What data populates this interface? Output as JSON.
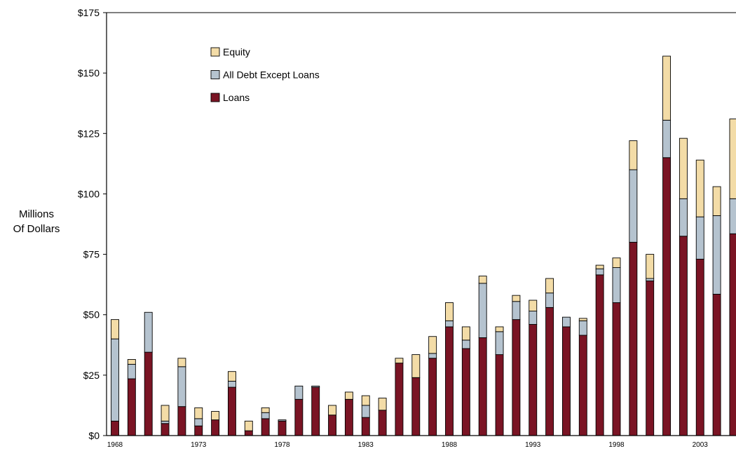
{
  "chart_data": {
    "type": "bar",
    "stacked": true,
    "title": "",
    "xlabel": "",
    "ylabel_lines": [
      "Millions",
      "Of Dollars"
    ],
    "ylim": [
      0,
      175
    ],
    "yticks": [
      0,
      25,
      50,
      75,
      100,
      125,
      150,
      175
    ],
    "ytick_labels": [
      "$0",
      "$25",
      "$50",
      "$75",
      "$100",
      "$125",
      "$150",
      "$175"
    ],
    "xtick_labels": [
      {
        "year": 1968,
        "label": "1968"
      },
      {
        "year": 1973,
        "label": "1973"
      },
      {
        "year": 1978,
        "label": "1978"
      },
      {
        "year": 1983,
        "label": "1983"
      },
      {
        "year": 1988,
        "label": "1988"
      },
      {
        "year": 1993,
        "label": "1993"
      },
      {
        "year": 1998,
        "label": "1998"
      },
      {
        "year": 2003,
        "label": "2003"
      }
    ],
    "grid": false,
    "legend_position": "top-left",
    "categories": [
      1968,
      1969,
      1970,
      1971,
      1972,
      1973,
      1974,
      1975,
      1976,
      1977,
      1978,
      1979,
      1980,
      1981,
      1982,
      1983,
      1984,
      1985,
      1986,
      1987,
      1988,
      1989,
      1990,
      1991,
      1992,
      1993,
      1994,
      1995,
      1996,
      1997,
      1998,
      1999,
      2000,
      2001,
      2002,
      2003,
      2004,
      2005
    ],
    "series": [
      {
        "name": "Loans",
        "color": "#7a1424",
        "values": [
          6,
          23.5,
          34.5,
          5,
          12,
          4,
          6.5,
          20,
          2,
          7,
          6,
          15,
          20,
          8.5,
          15,
          7.5,
          10.5,
          30,
          24,
          32,
          45,
          36,
          40.5,
          33.5,
          48,
          46,
          53,
          45,
          41.5,
          66.5,
          55,
          80,
          64,
          115,
          82.5,
          73,
          58.5,
          83.5
        ]
      },
      {
        "name": "All Debt Except Loans",
        "color": "#b5c3cf",
        "values": [
          34,
          6,
          16.5,
          1,
          16.5,
          3,
          0,
          2.5,
          0,
          2.5,
          0.5,
          5.5,
          0.5,
          0,
          0,
          5,
          0,
          0,
          0,
          2,
          2.5,
          3.5,
          22.5,
          9.5,
          7.5,
          5.5,
          6,
          4,
          6,
          2.5,
          14.5,
          30,
          1,
          15.5,
          15.5,
          17.5,
          32.5,
          14.5
        ]
      },
      {
        "name": "Equity",
        "color": "#f3dca7",
        "values": [
          8,
          2,
          0,
          6.5,
          3.5,
          4.5,
          3.5,
          4,
          4,
          2,
          0,
          0,
          0,
          4,
          3,
          4,
          5,
          2,
          9.5,
          7,
          7.5,
          5.5,
          3,
          2,
          2.5,
          4.5,
          6,
          0,
          1,
          1.5,
          4,
          12,
          10,
          26.5,
          25,
          23.5,
          12,
          33
        ]
      }
    ],
    "legend_order": [
      "Equity",
      "All Debt Except Loans",
      "Loans"
    ]
  }
}
